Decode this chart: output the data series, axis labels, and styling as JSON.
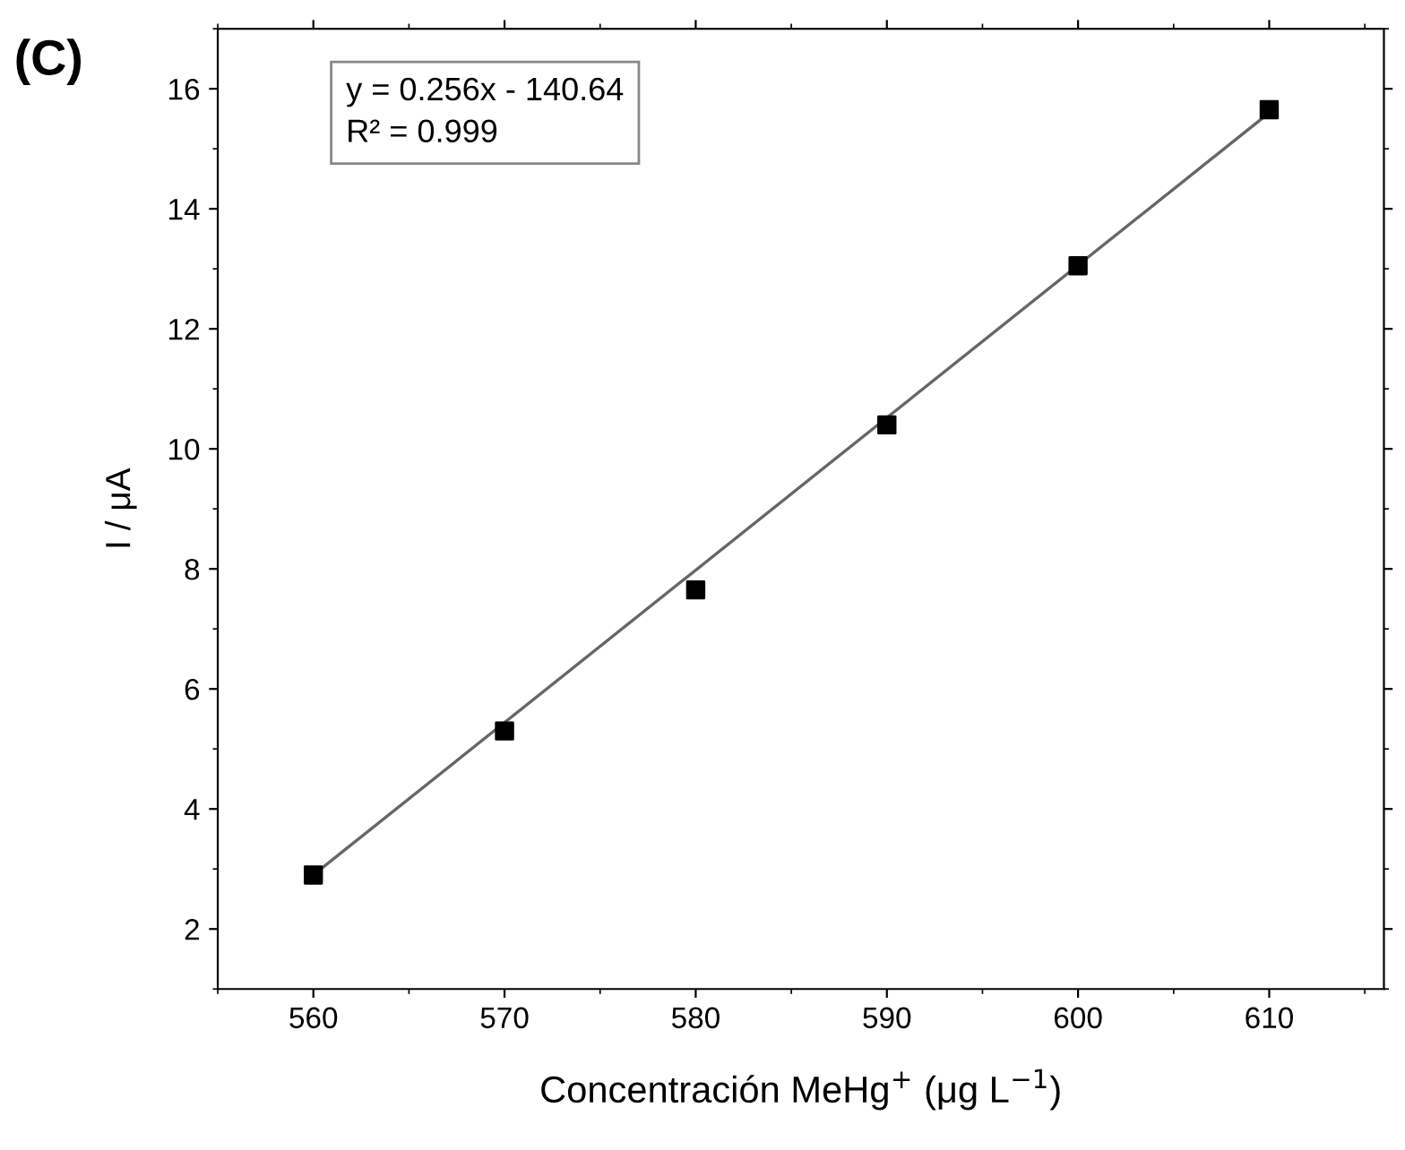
{
  "chart_data": {
    "type": "scatter",
    "xlabel": "Concentración MeHg$^{+}$ (μg L$^{−1}$)",
    "ylabel": "I / μA",
    "x": [
      560,
      570,
      580,
      590,
      600,
      610
    ],
    "series": [
      {
        "color": "#000000",
        "marker": "square",
        "values": [
          2.9,
          5.3,
          7.65,
          10.4,
          13.05,
          15.65
        ]
      },
      {
        "type": "line",
        "color": "#666666",
        "x": [
          560,
          610
        ],
        "values": [
          2.9,
          15.6
        ],
        "line_style": "solid",
        "marker": "none"
      }
    ],
    "xlim": [
      555,
      616
    ],
    "ylim": [
      1,
      17
    ],
    "xticks": [
      560,
      570,
      580,
      590,
      600,
      610
    ],
    "yticks": [
      2,
      4,
      6,
      8,
      10,
      12,
      14,
      16
    ],
    "annotations": [
      "(C)",
      "y = 0.256x - 140.64\nR² = 0.999"
    ],
    "grid": false,
    "legend": false
  }
}
